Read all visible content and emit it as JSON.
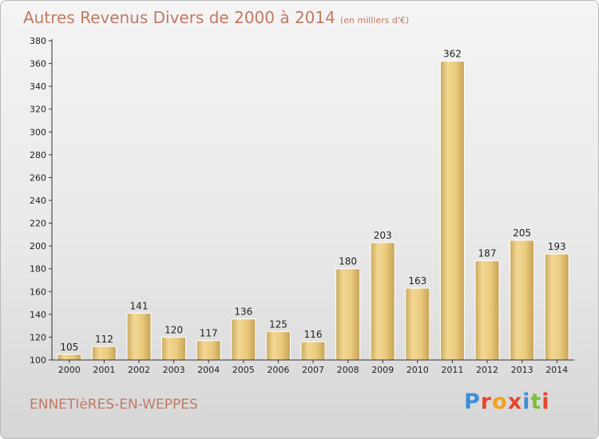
{
  "title": {
    "main": "Autres Revenus Divers de 2000 à 2014",
    "sub": "(en milliers d'€)"
  },
  "location": "ENNETIèRES-EN-WEPPES",
  "logo": {
    "text": "Proxiti",
    "letters": [
      {
        "char": "P",
        "color": "#3f8fd6"
      },
      {
        "char": "r",
        "color": "#e5472d"
      },
      {
        "char": "o",
        "color": "#f2a21e"
      },
      {
        "char": "x",
        "color": "#e5472d"
      },
      {
        "char": "i",
        "color": "#3f8fd6"
      },
      {
        "char": "t",
        "color": "#7cbf3a"
      },
      {
        "char": "i",
        "color": "#e5472d"
      }
    ]
  },
  "chart_data": {
    "type": "bar",
    "title": "Autres Revenus Divers de 2000 à 2014",
    "xlabel": "",
    "ylabel": "",
    "categories": [
      "2000",
      "2001",
      "2002",
      "2003",
      "2004",
      "2005",
      "2006",
      "2007",
      "2008",
      "2009",
      "2010",
      "2011",
      "2012",
      "2013",
      "2014"
    ],
    "values": [
      105,
      112,
      141,
      120,
      117,
      136,
      125,
      116,
      180,
      203,
      163,
      362,
      187,
      205,
      193
    ],
    "ylim": [
      100,
      380
    ],
    "yticks": [
      100,
      120,
      140,
      160,
      180,
      200,
      220,
      240,
      260,
      280,
      300,
      320,
      340,
      360,
      380
    ],
    "grid": false,
    "bar_color": "#e6c77a"
  }
}
